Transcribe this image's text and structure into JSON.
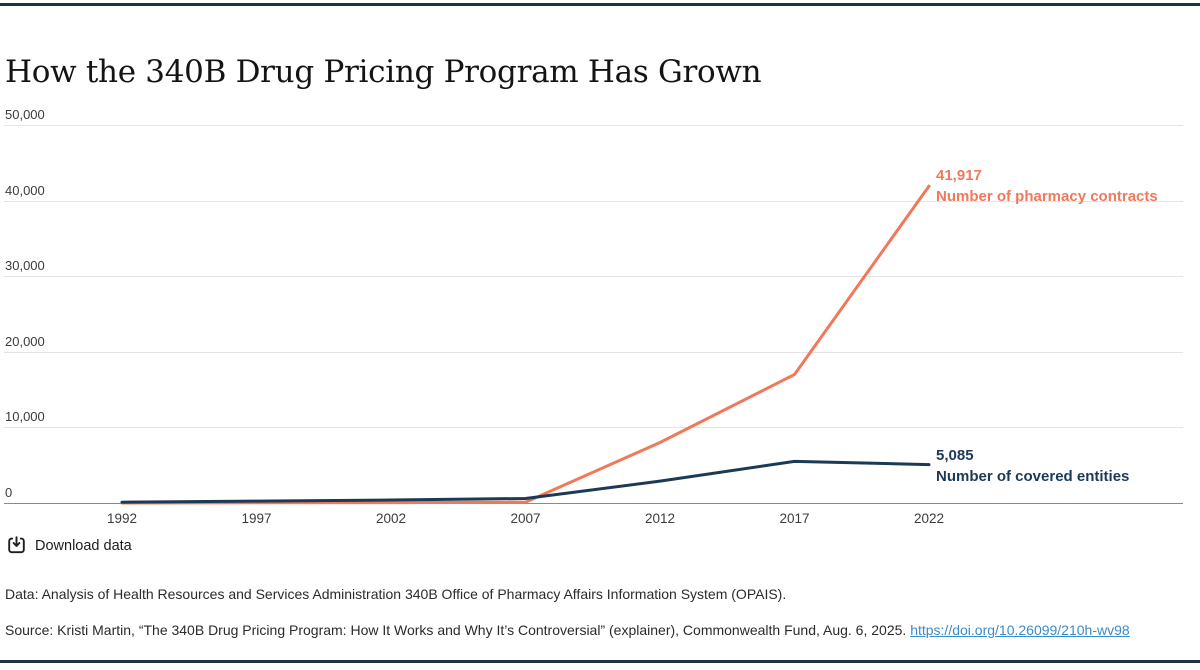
{
  "page": {
    "title": "How the 340B Drug Pricing Program Has Grown",
    "download_label": "Download data",
    "data_note": "Data: Analysis of Health Resources and Services Administration 340B Office of Pharmacy Affairs Information System (OPAIS).",
    "source_prefix": "Source: Kristi Martin, “The 340B Drug Pricing Program: How It Works and Why It’s Controversial” (explainer), Commonwealth Fund, Aug. 6, 2025. ",
    "source_link": "https://doi.org/10.26099/210h-wv98"
  },
  "colors": {
    "accent_orange": "#f0795b",
    "accent_navy": "#1b3a55",
    "page_rule": "#1c3349",
    "gridline": "#e4e4e4",
    "zero_axis": "#8a8a8a",
    "link_blue": "#3a8bc9"
  },
  "chart_data": {
    "type": "line",
    "title": "How the 340B Drug Pricing Program Has Grown",
    "x": [
      1992,
      1997,
      2002,
      2007,
      2012,
      2017,
      2022
    ],
    "series": [
      {
        "name": "Number of pharmacy contracts",
        "color": "#f0795b",
        "values": [
          0,
          30,
          50,
          100,
          8000,
          17000,
          41917
        ],
        "end_label": "41,917"
      },
      {
        "name": "Number of covered entities",
        "color": "#1b3a55",
        "values": [
          100,
          250,
          400,
          600,
          2900,
          5500,
          5085
        ],
        "end_label": "5,085"
      }
    ],
    "ylim": [
      0,
      50000
    ],
    "y_ticks": [
      {
        "value": 0,
        "label": "0"
      },
      {
        "value": 10000,
        "label": "10,000"
      },
      {
        "value": 20000,
        "label": "20,000"
      },
      {
        "value": 30000,
        "label": "30,000"
      },
      {
        "value": 40000,
        "label": "40,000"
      },
      {
        "value": 50000,
        "label": "50,000"
      }
    ],
    "xlabel": "",
    "ylabel": "",
    "grid": "horizontal",
    "legend_position": "line-end-labels"
  }
}
